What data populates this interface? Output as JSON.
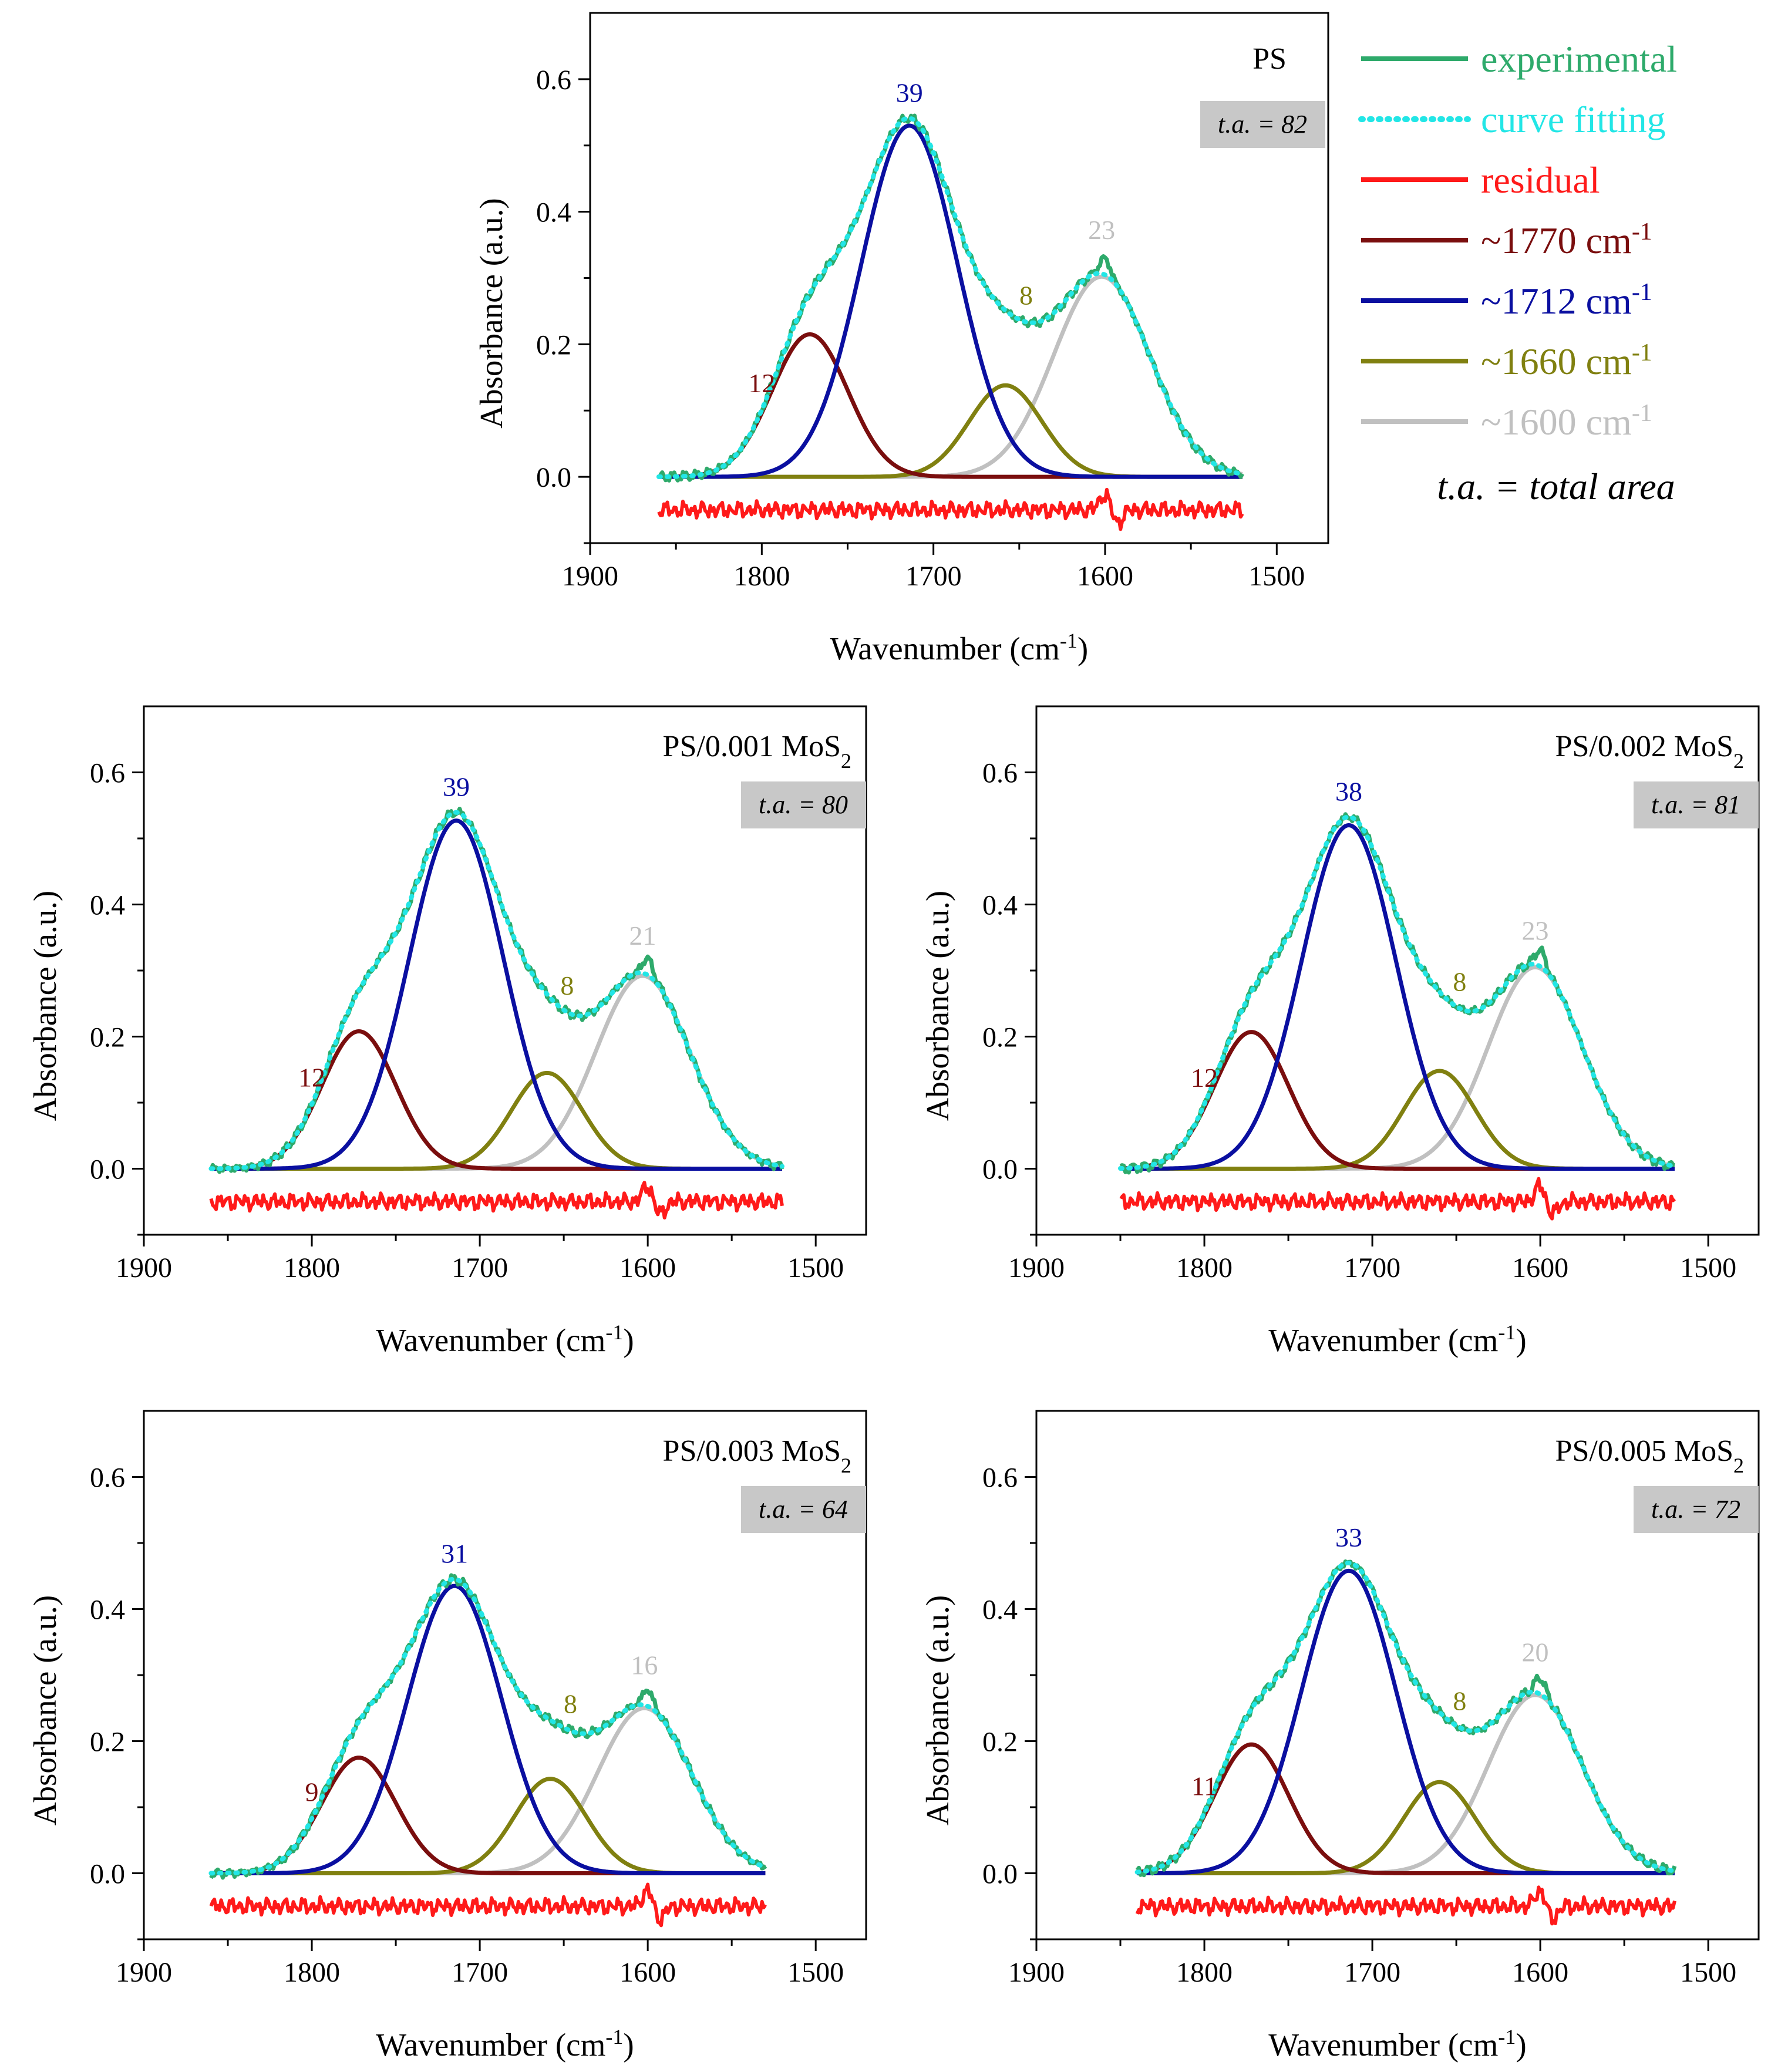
{
  "figure": {
    "series_colors": {
      "experimental": "#2EAA6B",
      "curve_fitting": "#22E6E6",
      "residual": "#FF1A1A",
      "band_1770": "#7A0E0E",
      "band_1712": "#0A0FA0",
      "band_1660": "#808010",
      "band_1600": "#C0C0C0",
      "ta_box": "#C8C8C8"
    },
    "legend": {
      "items": [
        {
          "key": "experimental",
          "label": "experimental"
        },
        {
          "key": "curve_fitting",
          "label": "curve fitting"
        },
        {
          "key": "residual",
          "label": "residual"
        },
        {
          "key": "band_1770",
          "label": "~1770 cm",
          "sup": "-1"
        },
        {
          "key": "band_1712",
          "label": "~1712 cm",
          "sup": "-1"
        },
        {
          "key": "band_1660",
          "label": "~1660 cm",
          "sup": "-1"
        },
        {
          "key": "band_1600",
          "label": "~1600 cm",
          "sup": "-1"
        }
      ],
      "note": "t.a. = total area"
    }
  },
  "chart_data": [
    {
      "type": "line",
      "title": "PS",
      "title_sub": "",
      "total_area_label": "t.a. = 82",
      "xlabel": "Wavenumber (cm",
      "xlabel_sup": "-1",
      "xlabel_end": ")",
      "ylabel": "Absorbance (a.u.)",
      "xlim": [
        1900,
        1470
      ],
      "ylim": [
        -0.1,
        0.7
      ],
      "xticks": [
        1900,
        1800,
        1700,
        1600,
        1500
      ],
      "yticks": [
        0.0,
        0.2,
        0.4,
        0.6
      ],
      "x_range": [
        1860,
        1520
      ],
      "bands": [
        {
          "center": 1772,
          "height": 0.215,
          "fwhm": 52,
          "label": "12",
          "color_key": "band_1770"
        },
        {
          "center": 1714,
          "height": 0.53,
          "fwhm": 66,
          "label": "39",
          "color_key": "band_1712"
        },
        {
          "center": 1658,
          "height": 0.138,
          "fwhm": 50,
          "label": "8",
          "color_key": "band_1660"
        },
        {
          "center": 1602,
          "height": 0.302,
          "fwhm": 66,
          "label": "23",
          "color_key": "band_1600"
        }
      ],
      "residual_offset": -0.05,
      "sharp_peak": {
        "x": 1600,
        "extra": 0.025
      }
    },
    {
      "type": "line",
      "title": "PS/0.001 MoS",
      "title_sub": "2",
      "total_area_label": "t.a. = 80",
      "xlabel": "Wavenumber (cm",
      "xlabel_sup": "-1",
      "xlabel_end": ")",
      "ylabel": "Absorbance (a.u.)",
      "xlim": [
        1900,
        1470
      ],
      "ylim": [
        -0.1,
        0.7
      ],
      "xticks": [
        1900,
        1800,
        1700,
        1600,
        1500
      ],
      "yticks": [
        0.0,
        0.2,
        0.4,
        0.6
      ],
      "x_range": [
        1860,
        1520
      ],
      "bands": [
        {
          "center": 1772,
          "height": 0.208,
          "fwhm": 52,
          "label": "12",
          "color_key": "band_1770"
        },
        {
          "center": 1714,
          "height": 0.527,
          "fwhm": 66,
          "label": "39",
          "color_key": "band_1712"
        },
        {
          "center": 1660,
          "height": 0.145,
          "fwhm": 50,
          "label": "8",
          "color_key": "band_1660"
        },
        {
          "center": 1603,
          "height": 0.292,
          "fwhm": 66,
          "label": "21",
          "color_key": "band_1600"
        }
      ],
      "residual_offset": -0.05,
      "sharp_peak": {
        "x": 1600,
        "extra": 0.025
      }
    },
    {
      "type": "line",
      "title": "PS/0.002 MoS",
      "title_sub": "2",
      "total_area_label": "t.a. = 81",
      "xlabel": "Wavenumber (cm",
      "xlabel_sup": "-1",
      "xlabel_end": ")",
      "ylabel": "Absorbance (a.u.)",
      "xlim": [
        1900,
        1470
      ],
      "ylim": [
        -0.1,
        0.7
      ],
      "xticks": [
        1900,
        1800,
        1700,
        1600,
        1500
      ],
      "yticks": [
        0.0,
        0.2,
        0.4,
        0.6
      ],
      "x_range": [
        1850,
        1520
      ],
      "bands": [
        {
          "center": 1772,
          "height": 0.207,
          "fwhm": 52,
          "label": "12",
          "color_key": "band_1770"
        },
        {
          "center": 1714,
          "height": 0.52,
          "fwhm": 66,
          "label": "38",
          "color_key": "band_1712"
        },
        {
          "center": 1660,
          "height": 0.148,
          "fwhm": 50,
          "label": "8",
          "color_key": "band_1660"
        },
        {
          "center": 1603,
          "height": 0.305,
          "fwhm": 66,
          "label": "23",
          "color_key": "band_1600"
        }
      ],
      "residual_offset": -0.05,
      "sharp_peak": {
        "x": 1600,
        "extra": 0.025
      }
    },
    {
      "type": "line",
      "title": "PS/0.003 MoS",
      "title_sub": "2",
      "total_area_label": "t.a. = 64",
      "xlabel": "Wavenumber (cm",
      "xlabel_sup": "-1",
      "xlabel_end": ")",
      "ylabel": "Absorbance (a.u.)",
      "xlim": [
        1900,
        1470
      ],
      "ylim": [
        -0.1,
        0.7
      ],
      "xticks": [
        1900,
        1800,
        1700,
        1600,
        1500
      ],
      "yticks": [
        0.0,
        0.2,
        0.4,
        0.6
      ],
      "x_range": [
        1860,
        1530
      ],
      "bands": [
        {
          "center": 1772,
          "height": 0.175,
          "fwhm": 52,
          "label": "9",
          "color_key": "band_1770"
        },
        {
          "center": 1715,
          "height": 0.435,
          "fwhm": 66,
          "label": "31",
          "color_key": "band_1712"
        },
        {
          "center": 1658,
          "height": 0.143,
          "fwhm": 50,
          "label": "8",
          "color_key": "band_1660"
        },
        {
          "center": 1602,
          "height": 0.25,
          "fwhm": 66,
          "label": "16",
          "color_key": "band_1600"
        }
      ],
      "residual_offset": -0.05,
      "sharp_peak": {
        "x": 1600,
        "extra": 0.025
      }
    },
    {
      "type": "line",
      "title": "PS/0.005 MoS",
      "title_sub": "2",
      "total_area_label": "t.a. = 72",
      "xlabel": "Wavenumber (cm",
      "xlabel_sup": "-1",
      "xlabel_end": ")",
      "ylabel": "Absorbance (a.u.)",
      "xlim": [
        1900,
        1470
      ],
      "ylim": [
        -0.1,
        0.7
      ],
      "xticks": [
        1900,
        1800,
        1700,
        1600,
        1500
      ],
      "yticks": [
        0.0,
        0.2,
        0.4,
        0.6
      ],
      "x_range": [
        1840,
        1520
      ],
      "bands": [
        {
          "center": 1772,
          "height": 0.195,
          "fwhm": 52,
          "label": "11",
          "color_key": "band_1770"
        },
        {
          "center": 1714,
          "height": 0.458,
          "fwhm": 66,
          "label": "33",
          "color_key": "band_1712"
        },
        {
          "center": 1660,
          "height": 0.138,
          "fwhm": 50,
          "label": "8",
          "color_key": "band_1660"
        },
        {
          "center": 1603,
          "height": 0.27,
          "fwhm": 66,
          "label": "20",
          "color_key": "band_1600"
        }
      ],
      "residual_offset": -0.05,
      "sharp_peak": {
        "x": 1600,
        "extra": 0.025
      }
    }
  ]
}
